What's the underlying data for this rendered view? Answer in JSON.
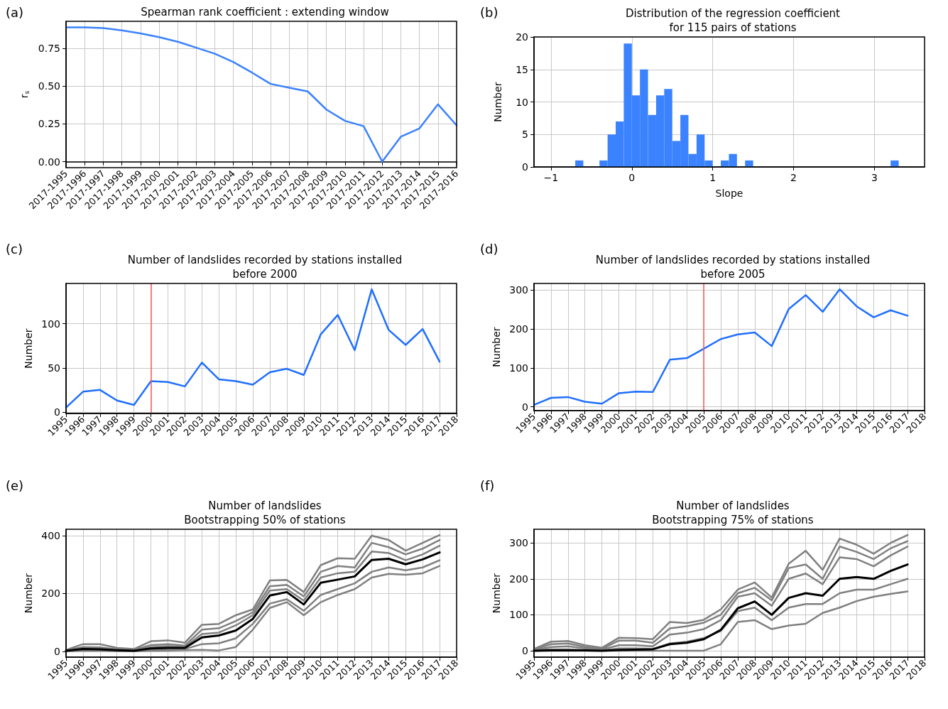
{
  "chart_data": [
    {
      "type": "line",
      "title": "Spearman rank coefficient : extending window",
      "ylabel": "r$_{s}$",
      "annotations": [
        "(a)"
      ],
      "grid": true,
      "categories": [
        "2017-1995",
        "2017-1996",
        "2017-1997",
        "2017-1998",
        "2017-1999",
        "2017-2000",
        "2017-2001",
        "2017-2002",
        "2017-2003",
        "2017-2004",
        "2017-2005",
        "2017-2006",
        "2017-2007",
        "2017-2008",
        "2017-2009",
        "2017-2010",
        "2017-2011",
        "2017-2012",
        "2017-2013",
        "2017-2014",
        "2017-2015",
        "2017-2016"
      ],
      "series": [
        {
          "color": "#3b82ff",
          "values": [
            0.89,
            0.89,
            0.885,
            0.87,
            0.85,
            0.825,
            0.795,
            0.755,
            0.715,
            0.66,
            0.59,
            0.515,
            0.49,
            0.465,
            0.345,
            0.27,
            0.235,
            0.0,
            0.165,
            0.22,
            0.38,
            0.24
          ]
        }
      ],
      "ylim": [
        -0.04,
        0.93
      ],
      "yticks": [
        {
          "value": 0,
          "label": "0.00"
        },
        {
          "value": 0.25,
          "label": "0.25"
        },
        {
          "value": 0.5,
          "label": "0.50"
        },
        {
          "value": 0.75,
          "label": "0.75"
        }
      ]
    },
    {
      "type": "histogram",
      "title": "Distribution of the regression coefficient\nfor 115 pairs of stations",
      "xlabel": "Slope",
      "ylabel": "Number",
      "annotations": [
        "(b)"
      ],
      "grid": true,
      "color": "#3b82ff",
      "bins": [
        -0.7,
        -0.6,
        -0.5,
        -0.4,
        -0.3,
        -0.2,
        -0.1,
        0,
        0.1,
        0.2,
        0.3,
        0.4,
        0.5,
        0.6,
        0.7,
        0.8,
        0.9,
        1.0,
        1.1,
        1.2,
        1.3,
        1.4,
        1.5,
        1.6,
        1.7,
        1.8,
        1.9,
        2.0,
        2.1,
        2.2,
        2.3,
        2.4,
        2.5,
        2.6,
        2.7,
        2.8,
        2.9,
        3.0,
        3.1,
        3.2,
        3.3
      ],
      "values": [
        1,
        0,
        0,
        1,
        5,
        7,
        19,
        11,
        15,
        8,
        11,
        12,
        4,
        8,
        2,
        5,
        1,
        0,
        1,
        2,
        0,
        1,
        0,
        0,
        0,
        0,
        0,
        0,
        0,
        0,
        0,
        0,
        0,
        0,
        0,
        0,
        0,
        0,
        0,
        1
      ],
      "xlim": [
        -1.21,
        3.62
      ],
      "xticks": [
        {
          "value": -1,
          "label": "−1"
        },
        0,
        1,
        2,
        3
      ],
      "ylim": [
        0,
        20
      ],
      "yticks": [
        0,
        5,
        10,
        15,
        20
      ]
    },
    {
      "type": "line",
      "title": "Number of landslides recorded by stations installed\nbefore 2000",
      "ylabel": "Number",
      "annotations": [
        "(c)"
      ],
      "grid": true,
      "x": [
        1995,
        1996,
        1997,
        1998,
        1999,
        2000,
        2001,
        2002,
        2003,
        2004,
        2005,
        2006,
        2007,
        2008,
        2009,
        2010,
        2011,
        2012,
        2013,
        2014,
        2015,
        2016,
        2017
      ],
      "series": [
        {
          "color": "#1f6fff",
          "values": [
            5,
            23,
            25,
            13,
            8,
            35,
            34,
            29,
            56,
            37,
            35,
            31,
            45,
            49,
            42,
            88,
            110,
            70,
            139,
            93,
            76,
            94,
            57
          ]
        }
      ],
      "xlim": [
        1995,
        2018
      ],
      "xticks": [
        1995,
        1996,
        1997,
        1998,
        1999,
        2000,
        2001,
        2002,
        2003,
        2004,
        2005,
        2006,
        2007,
        2008,
        2009,
        2010,
        2011,
        2012,
        2013,
        2014,
        2015,
        2016,
        2017,
        2018
      ],
      "ylim": [
        -1.7,
        145.7
      ],
      "yticks": [
        0,
        50,
        100
      ],
      "ref_lines": [
        {
          "axis": "x",
          "value": 2000,
          "color": "#ff5a5a"
        }
      ]
    },
    {
      "type": "line",
      "title": "Number of landslides recorded by stations installed\nbefore 2005",
      "ylabel": "Number",
      "annotations": [
        "(d)"
      ],
      "grid": true,
      "x": [
        1995,
        1996,
        1997,
        1998,
        1999,
        2000,
        2001,
        2002,
        2003,
        2004,
        2005,
        2006,
        2007,
        2008,
        2009,
        2010,
        2011,
        2012,
        2013,
        2014,
        2015,
        2016,
        2017
      ],
      "series": [
        {
          "color": "#1f6fff",
          "values": [
            5,
            23,
            25,
            13,
            8,
            35,
            39,
            38,
            121,
            125,
            149,
            174,
            186,
            191,
            156,
            251,
            287,
            244,
            302,
            258,
            230,
            248,
            234
          ]
        }
      ],
      "xlim": [
        1995,
        2018
      ],
      "xticks": [
        1995,
        1996,
        1997,
        1998,
        1999,
        2000,
        2001,
        2002,
        2003,
        2004,
        2005,
        2006,
        2007,
        2008,
        2009,
        2010,
        2011,
        2012,
        2013,
        2014,
        2015,
        2016,
        2017,
        2018
      ],
      "ylim": [
        -9.85,
        316.85
      ],
      "yticks": [
        0,
        100,
        200,
        300
      ],
      "ref_lines": [
        {
          "axis": "x",
          "value": 2005,
          "color": "#ff5a5a"
        }
      ]
    },
    {
      "type": "line",
      "title": "Number of landslides\nBootstrapping 50% of stations",
      "ylabel": "Number",
      "annotations": [
        "(e)"
      ],
      "grid": true,
      "x": [
        1995,
        1996,
        1997,
        1998,
        1999,
        2000,
        2001,
        2002,
        2003,
        2004,
        2005,
        2006,
        2007,
        2008,
        2009,
        2010,
        2011,
        2012,
        2013,
        2014,
        2015,
        2016,
        2017
      ],
      "series": [
        {
          "color": "#808080",
          "values": [
            5,
            25,
            25,
            12,
            8,
            35,
            38,
            30,
            92,
            95,
            125,
            145,
            245,
            247,
            205,
            298,
            322,
            320,
            400,
            385,
            348,
            375,
            402
          ]
        },
        {
          "color": "#808080",
          "values": [
            3,
            15,
            14,
            7,
            5,
            22,
            25,
            20,
            75,
            80,
            105,
            135,
            225,
            230,
            190,
            275,
            295,
            290,
            375,
            360,
            335,
            355,
            385
          ]
        },
        {
          "color": "#808080",
          "values": [
            2,
            10,
            10,
            5,
            3,
            15,
            18,
            15,
            60,
            65,
            90,
            125,
            210,
            215,
            175,
            255,
            270,
            275,
            345,
            340,
            315,
            335,
            365
          ]
        },
        {
          "color": "#808080",
          "values": [
            1,
            5,
            5,
            2,
            1,
            6,
            8,
            8,
            25,
            28,
            45,
            95,
            165,
            180,
            140,
            195,
            215,
            235,
            275,
            290,
            280,
            290,
            315
          ]
        },
        {
          "color": "#808080",
          "values": [
            0,
            2,
            2,
            1,
            0,
            2,
            3,
            4,
            5,
            3,
            15,
            75,
            150,
            170,
            125,
            170,
            195,
            215,
            255,
            268,
            265,
            270,
            295
          ]
        },
        {
          "color": "#000000",
          "values": [
            2,
            8,
            7,
            4,
            2,
            10,
            12,
            12,
            48,
            55,
            72,
            112,
            193,
            205,
            162,
            237,
            248,
            259,
            316,
            320,
            301,
            318,
            342
          ]
        }
      ],
      "xlim": [
        1995,
        2018
      ],
      "xticks": [
        1995,
        1996,
        1997,
        1998,
        1999,
        2000,
        2001,
        2002,
        2003,
        2004,
        2005,
        2006,
        2007,
        2008,
        2009,
        2010,
        2011,
        2012,
        2013,
        2014,
        2015,
        2016,
        2017,
        2018
      ],
      "ylim": [
        -20,
        422
      ],
      "yticks": [
        0,
        200,
        400
      ]
    },
    {
      "type": "line",
      "title": "Number of landslides\nBootstrapping 75% of stations",
      "ylabel": "Number",
      "annotations": [
        "(f)"
      ],
      "grid": true,
      "x": [
        1995,
        1996,
        1997,
        1998,
        1999,
        2000,
        2001,
        2002,
        2003,
        2004,
        2005,
        2006,
        2007,
        2008,
        2009,
        2010,
        2011,
        2012,
        2013,
        2014,
        2015,
        2016,
        2017
      ],
      "series": [
        {
          "color": "#808080",
          "values": [
            5,
            25,
            27,
            15,
            8,
            36,
            35,
            32,
            80,
            77,
            86,
            115,
            170,
            190,
            148,
            242,
            278,
            225,
            312,
            295,
            270,
            300,
            322
          ]
        },
        {
          "color": "#808080",
          "values": [
            3,
            18,
            20,
            10,
            5,
            28,
            28,
            22,
            62,
            68,
            78,
            100,
            160,
            175,
            140,
            230,
            240,
            200,
            290,
            275,
            255,
            285,
            305
          ]
        },
        {
          "color": "#808080",
          "values": [
            2,
            10,
            12,
            6,
            3,
            15,
            15,
            12,
            45,
            50,
            60,
            85,
            150,
            160,
            125,
            200,
            215,
            185,
            260,
            255,
            235,
            265,
            290
          ]
        },
        {
          "color": "#808080",
          "values": [
            1,
            4,
            4,
            2,
            1,
            6,
            6,
            5,
            20,
            25,
            35,
            55,
            110,
            120,
            85,
            120,
            130,
            130,
            160,
            170,
            170,
            185,
            200
          ]
        },
        {
          "color": "#808080",
          "values": [
            0,
            0,
            0,
            0,
            0,
            0,
            0,
            0,
            0,
            0,
            0,
            18,
            80,
            85,
            60,
            70,
            75,
            105,
            120,
            138,
            150,
            158,
            165
          ]
        },
        {
          "color": "#000000",
          "values": [
            0,
            1,
            1,
            1,
            0,
            2,
            3,
            4,
            18,
            22,
            32,
            58,
            118,
            137,
            100,
            147,
            160,
            153,
            200,
            205,
            200,
            222,
            240
          ]
        }
      ],
      "xlim": [
        1995,
        2018
      ],
      "xticks": [
        1995,
        1996,
        1997,
        1998,
        1999,
        2000,
        2001,
        2002,
        2003,
        2004,
        2005,
        2006,
        2007,
        2008,
        2009,
        2010,
        2011,
        2012,
        2013,
        2014,
        2015,
        2016,
        2017,
        2018
      ],
      "ylim": [
        -18,
        338
      ],
      "yticks": [
        0,
        100,
        200,
        300
      ]
    }
  ]
}
